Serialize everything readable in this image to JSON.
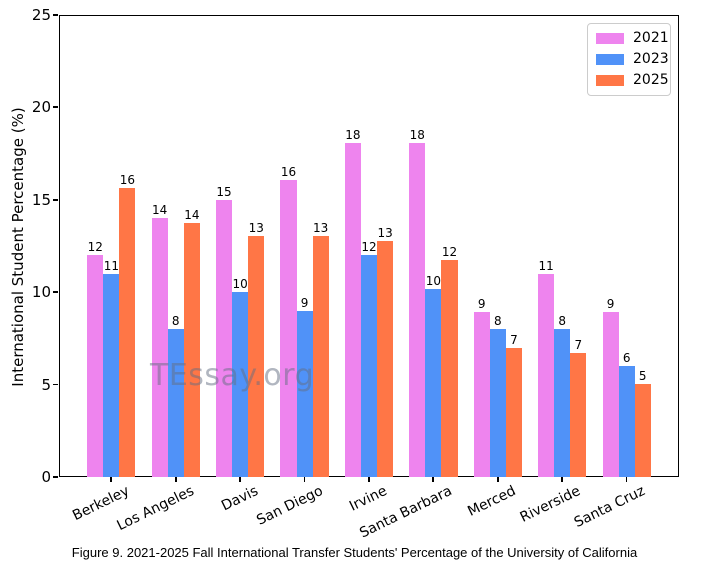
{
  "watermark": {
    "text": "TEssay.org"
  },
  "caption": "Figure 9. 2021-2025 Fall International Transfer Students' Percentage of the University of California",
  "chart_data": {
    "type": "bar",
    "title": "",
    "xlabel": "",
    "ylabel": "International Student Percentage (%)",
    "ylim": [
      0,
      25
    ],
    "yticks": [
      0,
      5,
      10,
      15,
      20,
      25
    ],
    "grid": false,
    "legend_position": "upper right",
    "categories": [
      "Berkeley",
      "Los Angeles",
      "Davis",
      "San Diego",
      "Irvine",
      "Santa Barbara",
      "Merced",
      "Riverside",
      "Santa Cruz"
    ],
    "series": [
      {
        "name": "2021",
        "color": "#EE84EE",
        "values": [
          12,
          14,
          15,
          16,
          18,
          18,
          9,
          11,
          9
        ],
        "bar_heights": [
          12.0,
          14.0,
          15.0,
          16.05,
          18.05,
          18.05,
          8.95,
          11.0,
          8.95
        ]
      },
      {
        "name": "2023",
        "color": "#5092F8",
        "values": [
          11,
          8,
          10,
          9,
          12,
          10,
          8,
          8,
          6
        ],
        "bar_heights": [
          11.0,
          8.0,
          10.0,
          9.0,
          12.0,
          10.15,
          8.0,
          8.0,
          6.0
        ]
      },
      {
        "name": "2025",
        "color": "#FF7646",
        "values": [
          16,
          14,
          13,
          13,
          13,
          12,
          7,
          7,
          5
        ],
        "bar_heights": [
          15.65,
          13.75,
          13.05,
          13.05,
          12.75,
          11.75,
          7.0,
          6.7,
          5.05
        ]
      }
    ]
  }
}
